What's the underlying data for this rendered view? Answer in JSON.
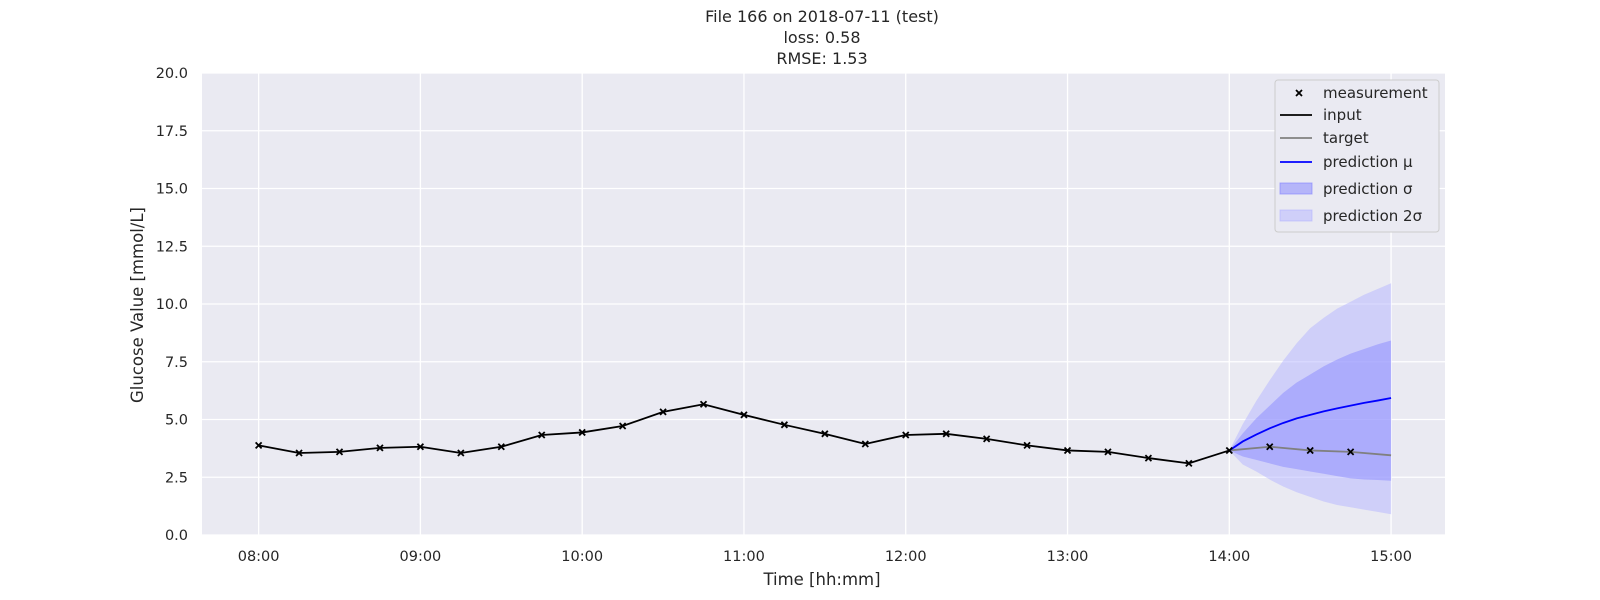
{
  "chart_data": {
    "type": "line",
    "title_lines": [
      "File 166 on 2018-07-11 (test)",
      "loss: 0.58",
      "RMSE: 1.53"
    ],
    "xlabel": "Time [hh:mm]",
    "ylabel": "Glucose Value [mmol/L]",
    "xlim": [
      "07:39",
      "15:20"
    ],
    "ylim": [
      0,
      20
    ],
    "x_ticks": [
      "08:00",
      "09:00",
      "10:00",
      "11:00",
      "12:00",
      "13:00",
      "14:00",
      "15:00"
    ],
    "y_ticks": [
      "0.0",
      "2.5",
      "5.0",
      "7.5",
      "10.0",
      "12.5",
      "15.0",
      "17.5",
      "20.0"
    ],
    "grid": true,
    "legend_position": "top-right",
    "legend": [
      "measurement",
      "input",
      "target",
      "prediction μ",
      "prediction σ",
      "prediction 2σ"
    ],
    "measurements": {
      "x": [
        "08:00",
        "08:15",
        "08:30",
        "08:45",
        "09:00",
        "09:15",
        "09:30",
        "09:45",
        "10:00",
        "10:15",
        "10:30",
        "10:45",
        "11:00",
        "11:15",
        "11:30",
        "11:45",
        "12:00",
        "12:15",
        "12:30",
        "12:45",
        "13:00",
        "13:15",
        "13:30",
        "13:45",
        "14:00",
        "14:15",
        "14:30",
        "14:45"
      ],
      "y": [
        3.88,
        3.55,
        3.6,
        3.77,
        3.82,
        3.55,
        3.82,
        4.33,
        4.44,
        4.72,
        5.33,
        5.66,
        5.2,
        4.77,
        4.38,
        3.94,
        4.33,
        4.38,
        4.16,
        3.88,
        3.66,
        3.6,
        3.33,
        3.1,
        3.66,
        3.82,
        3.66,
        3.6
      ]
    },
    "input": {
      "x": [
        "08:00",
        "08:15",
        "08:30",
        "08:45",
        "09:00",
        "09:15",
        "09:30",
        "09:45",
        "10:00",
        "10:15",
        "10:30",
        "10:45",
        "11:00",
        "11:15",
        "11:30",
        "11:45",
        "12:00",
        "12:15",
        "12:30",
        "12:45",
        "13:00",
        "13:15",
        "13:30",
        "13:45",
        "14:00"
      ],
      "y": [
        3.88,
        3.55,
        3.6,
        3.77,
        3.82,
        3.55,
        3.82,
        4.33,
        4.44,
        4.72,
        5.33,
        5.66,
        5.2,
        4.77,
        4.38,
        3.94,
        4.33,
        4.38,
        4.16,
        3.88,
        3.66,
        3.6,
        3.33,
        3.1,
        3.66
      ]
    },
    "target": {
      "x": [
        "14:00",
        "14:15",
        "14:30",
        "14:45",
        "15:00"
      ],
      "y": [
        3.66,
        3.82,
        3.66,
        3.6,
        3.45
      ]
    },
    "prediction": {
      "x": [
        "14:00",
        "14:05",
        "14:10",
        "14:15",
        "14:20",
        "14:25",
        "14:30",
        "14:35",
        "14:40",
        "14:45",
        "14:50",
        "14:55",
        "15:00"
      ],
      "mu": [
        3.66,
        4.05,
        4.35,
        4.62,
        4.85,
        5.05,
        5.2,
        5.35,
        5.48,
        5.6,
        5.72,
        5.82,
        5.93
      ],
      "sigma_upper": [
        3.66,
        4.4,
        5.05,
        5.6,
        6.15,
        6.6,
        6.95,
        7.3,
        7.6,
        7.85,
        8.05,
        8.25,
        8.42
      ],
      "sigma_lower": [
        3.66,
        3.4,
        3.25,
        3.1,
        2.95,
        2.85,
        2.75,
        2.65,
        2.55,
        2.45,
        2.4,
        2.38,
        2.35
      ],
      "two_sigma_upper": [
        3.66,
        4.8,
        5.8,
        6.7,
        7.55,
        8.3,
        8.95,
        9.4,
        9.8,
        10.1,
        10.4,
        10.65,
        10.9
      ],
      "two_sigma_lower": [
        3.66,
        3.05,
        2.75,
        2.4,
        2.1,
        1.85,
        1.65,
        1.45,
        1.3,
        1.2,
        1.1,
        1.0,
        0.9
      ]
    },
    "colors": {
      "background": "#eaeaf2",
      "grid": "#ffffff",
      "input": "#000000",
      "target": "#808080",
      "prediction": "#0000ff",
      "sigma_band": "#8080ff",
      "two_sigma_band": "#b3b3ff"
    }
  }
}
